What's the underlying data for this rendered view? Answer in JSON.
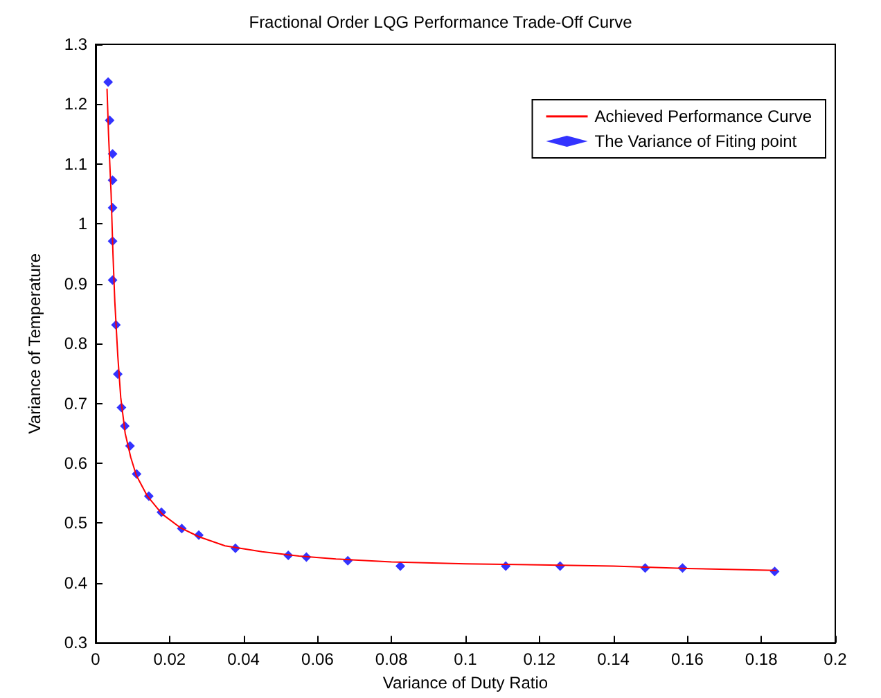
{
  "chart_data": {
    "type": "scatter",
    "title": "Fractional Order LQG Performance Trade-Off Curve",
    "xlabel": "Variance of Duty Ratio",
    "ylabel": "Variance of Temperature",
    "xlim": [
      0,
      0.2
    ],
    "xticks": [
      0,
      0.02,
      0.04,
      0.06,
      0.08,
      0.1,
      0.12,
      0.14,
      0.16,
      0.18,
      0.2
    ],
    "ylim": [
      0.3,
      1.3
    ],
    "yticks": [
      0.3,
      0.4,
      0.5,
      0.6,
      0.7,
      0.8,
      0.9,
      1,
      1.1,
      1.2,
      1.3
    ],
    "grid": false,
    "legend": "top right",
    "series": [
      {
        "name": "Achieved Performance Curve",
        "type": "line",
        "color": "#ff0000",
        "marker": "none",
        "line_style": "solid",
        "x": [
          0.0031,
          0.0035,
          0.0042,
          0.0047,
          0.0052,
          0.006,
          0.0068,
          0.008,
          0.0095,
          0.011,
          0.014,
          0.018,
          0.023,
          0.028,
          0.035,
          0.045,
          0.055,
          0.065,
          0.08,
          0.1,
          0.12,
          0.14,
          0.16,
          0.184
        ],
        "values": [
          1.225,
          1.15,
          1.05,
          0.95,
          0.87,
          0.78,
          0.71,
          0.65,
          0.61,
          0.58,
          0.545,
          0.515,
          0.492,
          0.477,
          0.462,
          0.452,
          0.445,
          0.44,
          0.435,
          0.432,
          0.43,
          0.428,
          0.424,
          0.421
        ]
      },
      {
        "name": "The Variance of Fiting point",
        "color": "#0000ff",
        "marker": "diamond",
        "x": [
          0.0034,
          0.0038,
          0.0046,
          0.0046,
          0.0046,
          0.0046,
          0.0046,
          0.0055,
          0.006,
          0.007,
          0.0079,
          0.0093,
          0.0111,
          0.0144,
          0.0178,
          0.0233,
          0.0279,
          0.0378,
          0.0521,
          0.057,
          0.0682,
          0.0824,
          0.1109,
          0.1256,
          0.1486,
          0.1587,
          0.1836
        ],
        "values": [
          1.237,
          1.173,
          1.117,
          1.073,
          1.027,
          0.971,
          0.906,
          0.831,
          0.749,
          0.693,
          0.662,
          0.629,
          0.582,
          0.545,
          0.518,
          0.491,
          0.48,
          0.458,
          0.446,
          0.443,
          0.437,
          0.428,
          0.428,
          0.428,
          0.425,
          0.425,
          0.419
        ]
      }
    ]
  }
}
